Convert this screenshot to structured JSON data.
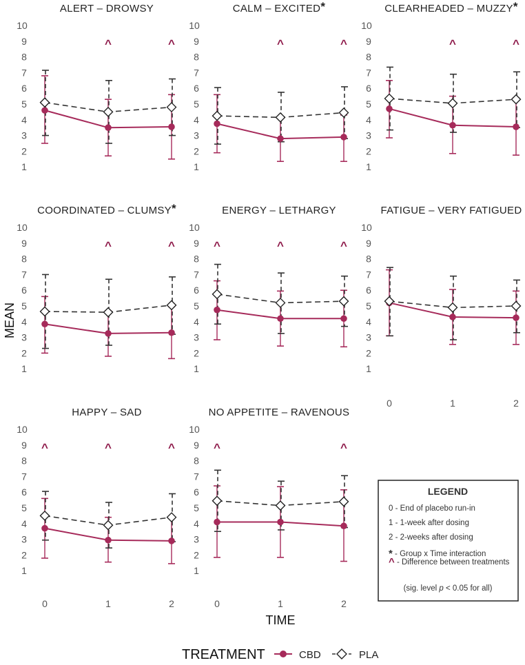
{
  "colors": {
    "cbd": "#a62a5a",
    "pla": "#333333",
    "caret": "#8e1a4a"
  },
  "labels": {
    "y_axis": "MEAN",
    "x_axis": "TIME"
  },
  "footer": {
    "title": "TREATMENT",
    "cbd": "CBD",
    "pla": "PLA"
  },
  "legend": {
    "title": "LEGEND",
    "line0": "0 - End of placebo run-in",
    "line1": "1 - 1-week after dosing",
    "line2": "2 - 2-weeks after dosing",
    "star_mark": "*",
    "star_text": " - Group x Time interaction",
    "caret_mark": "^",
    "caret_text": " - Difference between treatments",
    "sig_pre": "(sig. level ",
    "sig_p": "p",
    "sig_post": " < 0.05 for all)"
  },
  "chart_data": {
    "type": "line",
    "layout": "facet-grid 3x3",
    "x": [
      0,
      1,
      2
    ],
    "x_tick_labels": [
      "0",
      "1",
      "2"
    ],
    "y_ticks": [
      "1",
      "2",
      "3",
      "4",
      "5",
      "6",
      "7",
      "8",
      "9",
      "10"
    ],
    "ylim": [
      1,
      10
    ],
    "series_names": [
      "CBD",
      "PLA"
    ],
    "error_bars": "mean ± SD",
    "panels": [
      {
        "title": "ALERT – DROWSY",
        "star": false,
        "carets": [
          false,
          true,
          true
        ],
        "cbd": {
          "mean": [
            4.6,
            3.5,
            3.55
          ],
          "low": [
            2.5,
            1.7,
            1.5
          ],
          "high": [
            6.8,
            5.3,
            5.6
          ]
        },
        "pla": {
          "mean": [
            5.1,
            4.5,
            4.8
          ],
          "low": [
            3.0,
            2.5,
            3.0
          ],
          "high": [
            7.15,
            6.5,
            6.6
          ]
        }
      },
      {
        "title": "CALM – EXCITED",
        "star": true,
        "carets": [
          false,
          true,
          true
        ],
        "cbd": {
          "mean": [
            3.75,
            2.8,
            2.9
          ],
          "low": [
            1.9,
            1.35,
            1.35
          ],
          "high": [
            5.6,
            4.2,
            4.3
          ]
        },
        "pla": {
          "mean": [
            4.25,
            4.15,
            4.45
          ],
          "low": [
            2.45,
            2.6,
            2.8
          ],
          "high": [
            6.05,
            5.75,
            6.1
          ]
        }
      },
      {
        "title": "CLEARHEADED – MUZZY",
        "star": true,
        "carets": [
          false,
          true,
          true
        ],
        "cbd": {
          "mean": [
            4.7,
            3.65,
            3.55
          ],
          "low": [
            2.85,
            1.85,
            1.75
          ],
          "high": [
            6.5,
            5.5,
            5.4
          ]
        },
        "pla": {
          "mean": [
            5.35,
            5.05,
            5.3
          ],
          "low": [
            3.35,
            3.2,
            3.5
          ],
          "high": [
            7.35,
            6.9,
            7.05
          ]
        }
      },
      {
        "title": "COORDINATED – CLUMSY",
        "star": true,
        "carets": [
          false,
          true,
          true
        ],
        "cbd": {
          "mean": [
            3.85,
            3.25,
            3.3
          ],
          "low": [
            2.0,
            1.8,
            1.65
          ],
          "high": [
            5.6,
            4.7,
            4.95
          ]
        },
        "pla": {
          "mean": [
            4.65,
            4.6,
            5.05
          ],
          "low": [
            2.3,
            2.5,
            3.2
          ],
          "high": [
            7.0,
            6.7,
            6.85
          ]
        }
      },
      {
        "title": "ENERGY – LETHARGY",
        "star": false,
        "carets": [
          true,
          true,
          true
        ],
        "cbd": {
          "mean": [
            4.75,
            4.2,
            4.2
          ],
          "low": [
            2.85,
            2.45,
            2.4
          ],
          "high": [
            6.6,
            5.95,
            6.0
          ]
        },
        "pla": {
          "mean": [
            5.75,
            5.2,
            5.3
          ],
          "low": [
            3.85,
            3.25,
            3.7
          ],
          "high": [
            7.65,
            7.1,
            6.9
          ]
        }
      },
      {
        "title": "FATIGUE – VERY FATIGUED",
        "star": false,
        "carets": [
          false,
          false,
          false
        ],
        "cbd": {
          "mean": [
            5.2,
            4.3,
            4.25
          ],
          "low": [
            3.1,
            2.55,
            2.55
          ],
          "high": [
            7.3,
            6.05,
            5.95
          ]
        },
        "pla": {
          "mean": [
            5.3,
            4.9,
            5.0
          ],
          "low": [
            3.1,
            2.85,
            3.3
          ],
          "high": [
            7.45,
            6.9,
            6.65
          ]
        }
      },
      {
        "title": "HAPPY – SAD",
        "star": false,
        "carets": [
          true,
          true,
          true
        ],
        "cbd": {
          "mean": [
            3.7,
            2.95,
            2.9
          ],
          "low": [
            1.8,
            1.55,
            1.45
          ],
          "high": [
            5.6,
            4.4,
            4.4
          ]
        },
        "pla": {
          "mean": [
            4.5,
            3.9,
            4.4
          ],
          "low": [
            2.95,
            2.45,
            2.85
          ],
          "high": [
            6.05,
            5.35,
            5.9
          ]
        }
      },
      {
        "title": "NO APPETITE – RAVENOUS",
        "star": false,
        "carets": [
          true,
          false,
          true
        ],
        "cbd": {
          "mean": [
            4.1,
            4.1,
            3.85
          ],
          "low": [
            1.85,
            1.85,
            1.6
          ],
          "high": [
            6.4,
            6.35,
            6.15
          ]
        },
        "pla": {
          "mean": [
            5.45,
            5.15,
            5.4
          ],
          "low": [
            3.5,
            3.6,
            3.75
          ],
          "high": [
            7.4,
            6.7,
            7.05
          ]
        }
      }
    ]
  }
}
